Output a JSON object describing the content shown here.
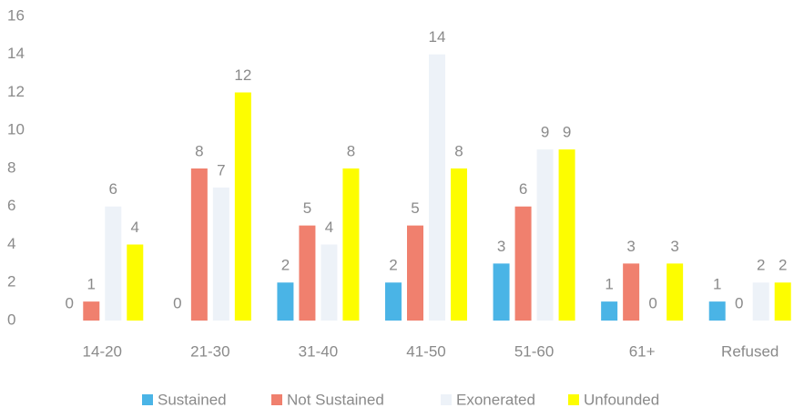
{
  "chart_data": {
    "type": "bar",
    "categories": [
      "14-20",
      "21-30",
      "31-40",
      "41-50",
      "51-60",
      "61+",
      "Refused"
    ],
    "series": [
      {
        "name": "Sustained",
        "color": "#4ab4e6",
        "values": [
          0,
          0,
          2,
          2,
          3,
          1,
          1
        ]
      },
      {
        "name": "Not Sustained",
        "color": "#f0806e",
        "values": [
          1,
          8,
          5,
          5,
          6,
          3,
          0
        ]
      },
      {
        "name": "Exonerated",
        "color": "#edf2f8",
        "values": [
          6,
          7,
          4,
          14,
          9,
          0,
          2
        ]
      },
      {
        "name": "Unfounded",
        "color": "#fdfd00",
        "values": [
          4,
          12,
          8,
          8,
          9,
          3,
          2
        ]
      }
    ],
    "ylim": [
      0,
      16
    ],
    "yticks": [
      0,
      2,
      4,
      6,
      8,
      10,
      12,
      14,
      16
    ],
    "grid": false,
    "legend": "bottom"
  }
}
